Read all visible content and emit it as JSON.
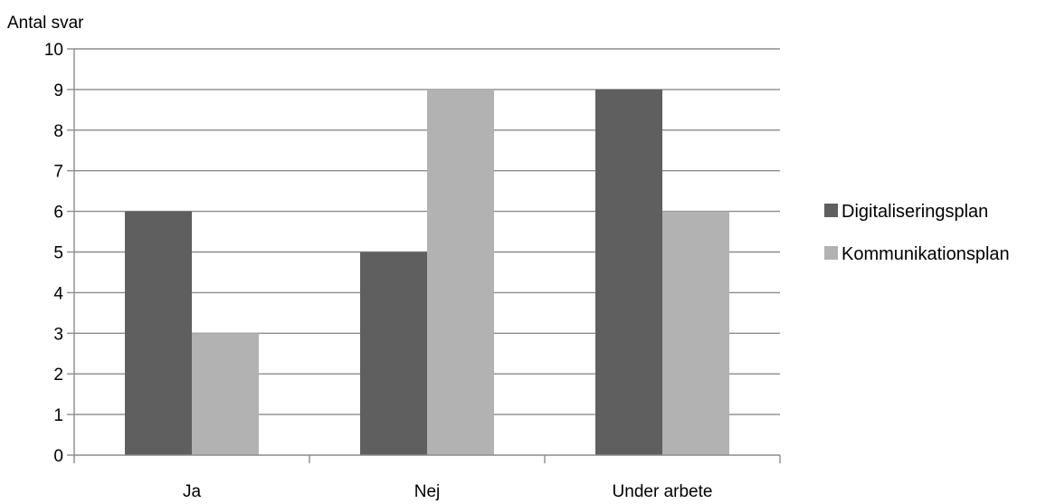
{
  "chart_data": {
    "type": "bar",
    "title": "",
    "xlabel": "",
    "ylabel": "Antal svar",
    "categories": [
      "Ja",
      "Nej",
      "Under arbete"
    ],
    "series": [
      {
        "name": "Digitaliseringsplan",
        "values": [
          6,
          5,
          9
        ],
        "color": "#5f5f5f"
      },
      {
        "name": "Kommunikationsplan",
        "values": [
          3,
          9,
          6
        ],
        "color": "#b2b2b2"
      }
    ],
    "ylim": [
      0,
      10
    ],
    "yticks": [
      "0",
      "1",
      "2",
      "3",
      "4",
      "5",
      "6",
      "7",
      "8",
      "9",
      "10"
    ],
    "grid": true,
    "legend_position": "right",
    "colors": {
      "gridline": "#8c8c8c",
      "axis": "#8c8c8c"
    }
  }
}
